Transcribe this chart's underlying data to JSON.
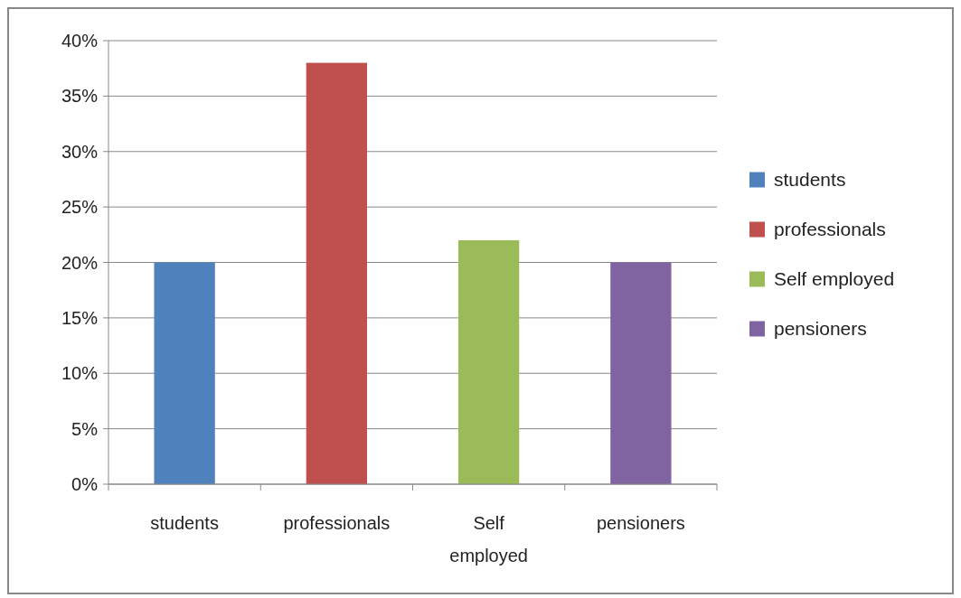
{
  "chart_data": {
    "type": "bar",
    "categories": [
      "students",
      "professionals",
      "Self employed",
      "pensioners"
    ],
    "series": [
      {
        "name": "students",
        "color": "#4f81bd",
        "values": [
          20,
          null,
          null,
          null
        ]
      },
      {
        "name": "professionals",
        "color": "#c0504d",
        "values": [
          null,
          38,
          null,
          null
        ]
      },
      {
        "name": "Self employed",
        "color": "#9bbb59",
        "values": [
          null,
          null,
          22,
          null
        ]
      },
      {
        "name": "pensioners",
        "color": "#8064a2",
        "values": [
          null,
          null,
          null,
          20
        ]
      }
    ],
    "ylim": [
      0,
      40
    ],
    "yticks": [
      {
        "value": 0,
        "label": "0%"
      },
      {
        "value": 5,
        "label": "5%"
      },
      {
        "value": 10,
        "label": "10%"
      },
      {
        "value": 15,
        "label": "15%"
      },
      {
        "value": 20,
        "label": "20%"
      },
      {
        "value": 25,
        "label": "25%"
      },
      {
        "value": 30,
        "label": "30%"
      },
      {
        "value": 35,
        "label": "35%"
      },
      {
        "value": 40,
        "label": "40%"
      }
    ],
    "grid": true,
    "legend": "right"
  }
}
